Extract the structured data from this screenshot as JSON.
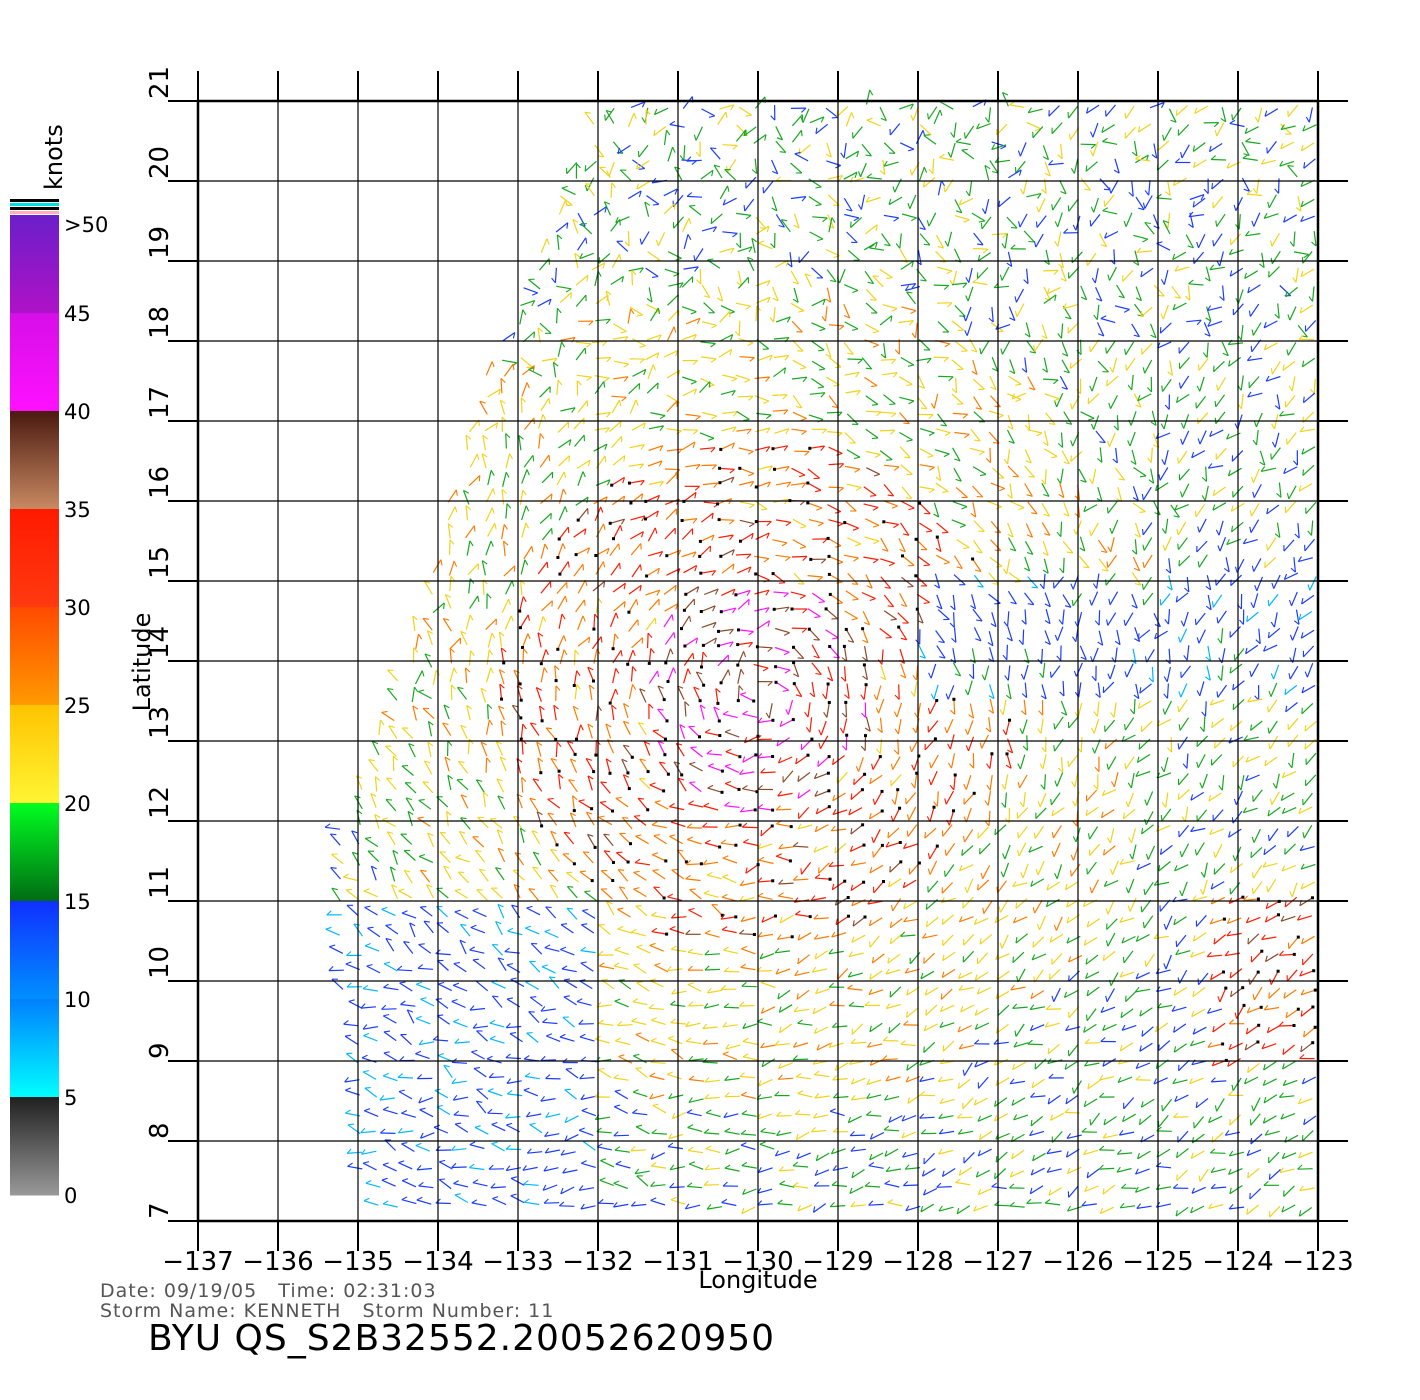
{
  "map": {
    "xlabel": "Longitude",
    "ylabel": "Latitude",
    "lon_range": [
      -137,
      -123
    ],
    "lat_range": [
      7,
      21
    ],
    "lon_ticks": [
      -137,
      -136,
      -135,
      -134,
      -133,
      -132,
      -131,
      -130,
      -129,
      -128,
      -127,
      -126,
      -125,
      -124,
      -123
    ],
    "lat_ticks": [
      7,
      8,
      9,
      10,
      11,
      12,
      13,
      14,
      15,
      16,
      17,
      18,
      19,
      20,
      21
    ],
    "lon_tick_labels": [
      "−137",
      "−136",
      "−135",
      "−134",
      "−133",
      "−132",
      "−131",
      "−130",
      "−129",
      "−128",
      "−127",
      "−126",
      "−125",
      "−124",
      "−123"
    ],
    "lat_tick_labels": [
      "7",
      "8",
      "9",
      "10",
      "11",
      "12",
      "13",
      "14",
      "15",
      "16",
      "17",
      "18",
      "19",
      "20",
      "21"
    ],
    "grid": true,
    "swath": {
      "corners_lonlat": [
        [
          -132.0,
          21.0
        ],
        [
          -122.9,
          21.0
        ],
        [
          -122.9,
          7.0
        ],
        [
          -134.9,
          7.0
        ],
        [
          -135.4,
          11.5
        ],
        [
          -134.2,
          14.7
        ],
        [
          -133.6,
          17.2
        ]
      ]
    },
    "storm_center_lonlat": [
      -130.0,
      13.6
    ],
    "field_note": "wind vectors coloured by speed, with rain-flagged vectors marked by black dots"
  },
  "legend": {
    "units": "knots",
    "labels": [
      ">50",
      "45",
      "40",
      "35",
      "30",
      "25",
      "20",
      "15",
      "10",
      "5",
      "0"
    ],
    "speed_colors": {
      "0-5": "#555555",
      "5-10": "#00b7ff",
      "10-15": "#1a3cff",
      "15-20": "#16a81f",
      "20-25": "#f2d21a",
      "25-30": "#ff7a00",
      "30-35": "#ff1a00",
      "35-40": "#8a4a2a",
      "40-45": "#ff10ff",
      "45-50": "#8d12c8"
    }
  },
  "footer": {
    "date_time": "Date: 09/19/05   Time: 02:31:03",
    "storm": "Storm Name: KENNETH   Storm Number: 11",
    "product": "BYU QS_S2B32552.20052620950"
  }
}
